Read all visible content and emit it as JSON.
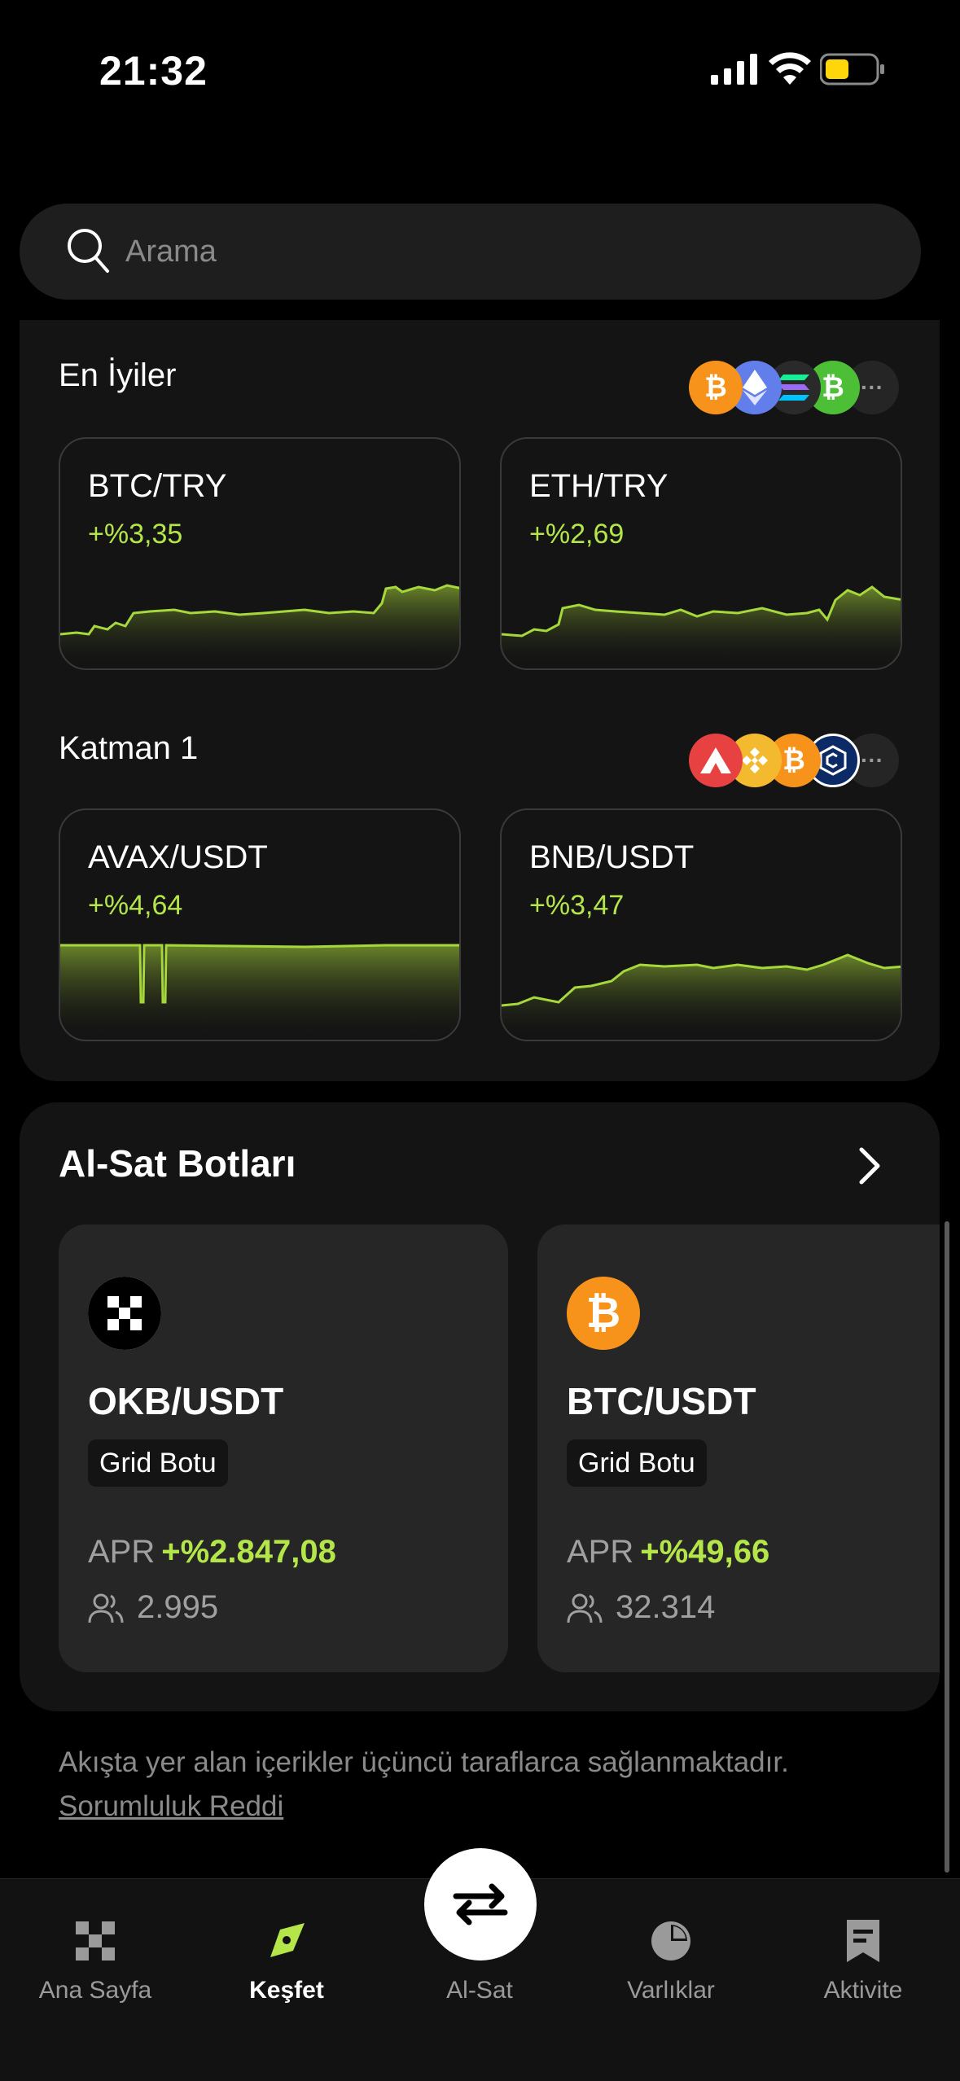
{
  "status_bar": {
    "time": "21:32"
  },
  "search": {
    "placeholder": "Arama"
  },
  "sections": {
    "top": {
      "title": "En İyiler",
      "coins": [
        "bitcoin-icon",
        "ethereum-icon",
        "solana-icon",
        "bitcoin-cash-icon",
        "more-icon"
      ],
      "cards": [
        {
          "pair": "BTC/TRY",
          "change": "+%3,35"
        },
        {
          "pair": "ETH/TRY",
          "change": "+%2,69"
        }
      ]
    },
    "layer1": {
      "title": "Katman 1",
      "coins": [
        "avalanche-icon",
        "bnb-icon",
        "bitcoin-icon",
        "cronos-icon",
        "more-icon"
      ],
      "cards": [
        {
          "pair": "AVAX/USDT",
          "change": "+%4,64"
        },
        {
          "pair": "BNB/USDT",
          "change": "+%3,47"
        }
      ]
    }
  },
  "bots": {
    "title": "Al-Sat Botları",
    "items": [
      {
        "pair": "OKB/USDT",
        "tag": "Grid Botu",
        "apr_label": "APR",
        "apr_value": "+%2.847,08",
        "users": "2.995",
        "icon": "okb-icon"
      },
      {
        "pair": "BTC/USDT",
        "tag": "Grid Botu",
        "apr_label": "APR",
        "apr_value": "+%49,66",
        "users": "32.314",
        "icon": "bitcoin-icon"
      }
    ]
  },
  "disclaimer": {
    "text": "Akışta yer alan içerikler üçüncü taraflarca sağlanmaktadır.",
    "link": "Sorumluluk Reddi"
  },
  "tabs": [
    {
      "label": "Ana Sayfa",
      "icon": "home-grid-icon",
      "active": false
    },
    {
      "label": "Keşfet",
      "icon": "compass-icon",
      "active": true
    },
    {
      "label": "Al-Sat",
      "icon": "swap-arrows-icon",
      "active": false
    },
    {
      "label": "Varlıklar",
      "icon": "pie-chart-icon",
      "active": false
    },
    {
      "label": "Aktivite",
      "icon": "bookmark-list-icon",
      "active": false
    }
  ],
  "colors": {
    "accent_green": "#b4e64a",
    "background": "#000000",
    "panel": "#141414",
    "card": "#262626"
  }
}
